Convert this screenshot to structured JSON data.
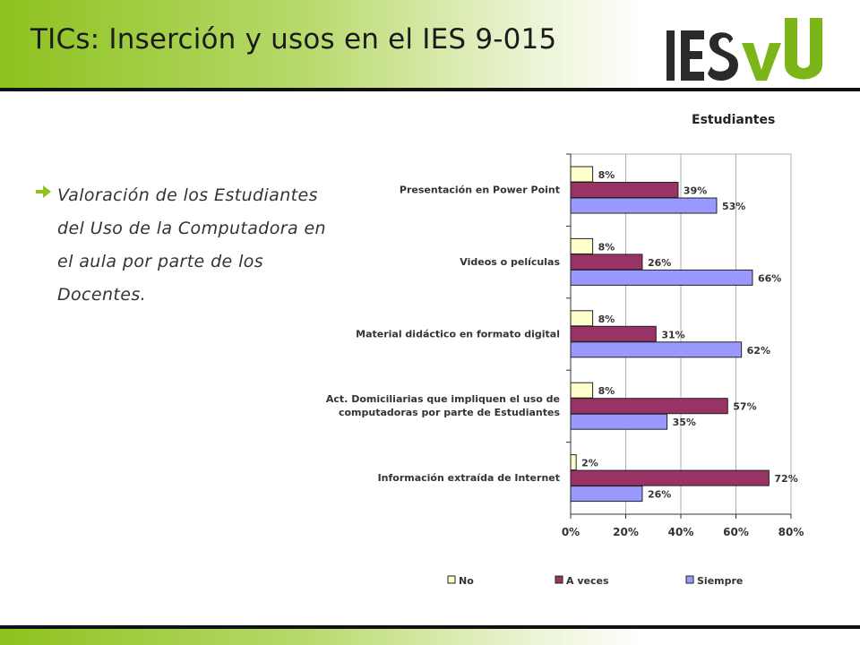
{
  "slide": {
    "title": "TICs: Inserción y usos en el IES 9-015",
    "logo_text": "IESVU",
    "bullet_text": "Valoración de los Estudiantes del Uso de la Computadora en el aula por parte de los Docentes.",
    "chart_heading": "Estudiantes"
  },
  "colors": {
    "header_green": "#8dc21f",
    "logo_green": "#7cb518",
    "bullet_arrow": "#8dc21f",
    "no": "#ffffcc",
    "a_veces": "#993366",
    "siempre": "#9999ff"
  },
  "icons": {
    "bullet": "arrow-right-icon"
  },
  "chart_data": {
    "type": "bar",
    "orientation": "horizontal",
    "title": "Estudiantes",
    "categories": [
      "Presentación en Power Point",
      "Videos o películas",
      "Material didáctico en formato digital",
      "Act. Domiciliarias que impliquen el uso de computadoras por parte de Estudiantes",
      "Información extraída de Internet"
    ],
    "category_lines": [
      [
        "Presentación en Power Point"
      ],
      [
        "Videos o películas"
      ],
      [
        "Material didáctico en formato digital"
      ],
      [
        "Act. Domiciliarias que impliquen el uso de",
        "computadoras por parte de Estudiantes"
      ],
      [
        "Información extraída de Internet"
      ]
    ],
    "series": [
      {
        "name": "No",
        "values": [
          8,
          8,
          8,
          8,
          2
        ],
        "labels": [
          "8%",
          "8%",
          "8%",
          "8%",
          "2%"
        ]
      },
      {
        "name": "A veces",
        "values": [
          39,
          26,
          31,
          57,
          72
        ],
        "labels": [
          "39%",
          "26%",
          "31%",
          "57%",
          "72%"
        ]
      },
      {
        "name": "Siempre",
        "values": [
          53,
          66,
          62,
          35,
          26
        ],
        "labels": [
          "53%",
          "66%",
          "62%",
          "35%",
          "26%"
        ]
      }
    ],
    "xlim": [
      0,
      80
    ],
    "xticks": [
      0,
      20,
      40,
      60,
      80
    ],
    "xtick_labels": [
      "0%",
      "20%",
      "40%",
      "60%",
      "80%"
    ],
    "grid": true,
    "legend": "bottom"
  }
}
